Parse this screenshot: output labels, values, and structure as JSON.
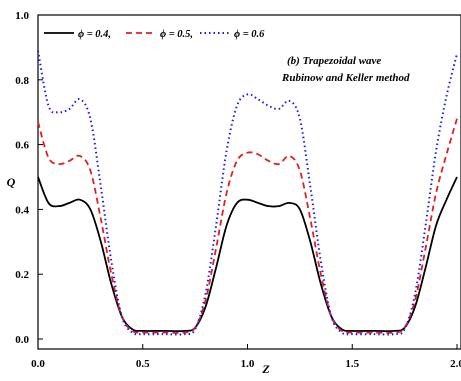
{
  "chart_data": {
    "type": "line",
    "xlabel": "Z",
    "ylabel": "Q",
    "xlim": [
      0.0,
      2.0
    ],
    "ylim": [
      0.0,
      1.0
    ],
    "x_ticks": [
      "0.0",
      "0.5",
      "1.0",
      "1.5",
      "2.0"
    ],
    "y_ticks": [
      "0.0",
      "0.2",
      "0.4",
      "0.6",
      "0.8",
      "1.0"
    ],
    "annotation": [
      "(b) Trapezoidal wave",
      "Rubinow and Keller method"
    ],
    "legend_position": "top",
    "series": [
      {
        "name": "ϕ = 0.4,",
        "color": "#000000",
        "dash": "solid",
        "points": [
          [
            0.0,
            0.5
          ],
          [
            0.05,
            0.42
          ],
          [
            0.1,
            0.41
          ],
          [
            0.15,
            0.42
          ],
          [
            0.2,
            0.43
          ],
          [
            0.25,
            0.4
          ],
          [
            0.3,
            0.3
          ],
          [
            0.35,
            0.17
          ],
          [
            0.4,
            0.07
          ],
          [
            0.45,
            0.03
          ],
          [
            0.5,
            0.025
          ],
          [
            0.6,
            0.025
          ],
          [
            0.7,
            0.025
          ],
          [
            0.75,
            0.035
          ],
          [
            0.8,
            0.1
          ],
          [
            0.85,
            0.22
          ],
          [
            0.9,
            0.35
          ],
          [
            0.95,
            0.42
          ],
          [
            1.0,
            0.43
          ],
          [
            1.05,
            0.42
          ],
          [
            1.1,
            0.41
          ],
          [
            1.15,
            0.41
          ],
          [
            1.2,
            0.42
          ],
          [
            1.25,
            0.4
          ],
          [
            1.3,
            0.3
          ],
          [
            1.35,
            0.17
          ],
          [
            1.4,
            0.07
          ],
          [
            1.45,
            0.03
          ],
          [
            1.5,
            0.025
          ],
          [
            1.6,
            0.025
          ],
          [
            1.7,
            0.025
          ],
          [
            1.75,
            0.035
          ],
          [
            1.8,
            0.1
          ],
          [
            1.85,
            0.22
          ],
          [
            1.9,
            0.35
          ],
          [
            1.95,
            0.43
          ],
          [
            2.0,
            0.5
          ]
        ]
      },
      {
        "name": "ϕ = 0.5,",
        "color": "#e02020",
        "dash": "dashed",
        "points": [
          [
            0.0,
            0.67
          ],
          [
            0.05,
            0.56
          ],
          [
            0.1,
            0.54
          ],
          [
            0.15,
            0.55
          ],
          [
            0.2,
            0.565
          ],
          [
            0.25,
            0.52
          ],
          [
            0.3,
            0.37
          ],
          [
            0.35,
            0.2
          ],
          [
            0.4,
            0.07
          ],
          [
            0.45,
            0.025
          ],
          [
            0.5,
            0.02
          ],
          [
            0.6,
            0.02
          ],
          [
            0.7,
            0.02
          ],
          [
            0.75,
            0.035
          ],
          [
            0.8,
            0.12
          ],
          [
            0.85,
            0.28
          ],
          [
            0.9,
            0.45
          ],
          [
            0.95,
            0.55
          ],
          [
            1.0,
            0.575
          ],
          [
            1.05,
            0.57
          ],
          [
            1.1,
            0.55
          ],
          [
            1.15,
            0.54
          ],
          [
            1.2,
            0.565
          ],
          [
            1.25,
            0.52
          ],
          [
            1.3,
            0.37
          ],
          [
            1.35,
            0.2
          ],
          [
            1.4,
            0.07
          ],
          [
            1.45,
            0.025
          ],
          [
            1.5,
            0.02
          ],
          [
            1.6,
            0.02
          ],
          [
            1.7,
            0.02
          ],
          [
            1.75,
            0.035
          ],
          [
            1.8,
            0.12
          ],
          [
            1.85,
            0.28
          ],
          [
            1.9,
            0.45
          ],
          [
            1.95,
            0.57
          ],
          [
            2.0,
            0.68
          ]
        ]
      },
      {
        "name": "ϕ = 0.6",
        "color": "#1a1aee",
        "dash": "dotted",
        "points": [
          [
            0.0,
            0.89
          ],
          [
            0.05,
            0.72
          ],
          [
            0.1,
            0.7
          ],
          [
            0.15,
            0.71
          ],
          [
            0.2,
            0.74
          ],
          [
            0.25,
            0.68
          ],
          [
            0.3,
            0.47
          ],
          [
            0.35,
            0.24
          ],
          [
            0.4,
            0.07
          ],
          [
            0.45,
            0.02
          ],
          [
            0.5,
            0.015
          ],
          [
            0.6,
            0.015
          ],
          [
            0.7,
            0.015
          ],
          [
            0.75,
            0.03
          ],
          [
            0.8,
            0.14
          ],
          [
            0.85,
            0.35
          ],
          [
            0.9,
            0.58
          ],
          [
            0.95,
            0.72
          ],
          [
            1.0,
            0.755
          ],
          [
            1.05,
            0.74
          ],
          [
            1.1,
            0.72
          ],
          [
            1.15,
            0.71
          ],
          [
            1.2,
            0.735
          ],
          [
            1.25,
            0.68
          ],
          [
            1.3,
            0.47
          ],
          [
            1.35,
            0.24
          ],
          [
            1.4,
            0.07
          ],
          [
            1.45,
            0.02
          ],
          [
            1.5,
            0.015
          ],
          [
            1.6,
            0.015
          ],
          [
            1.7,
            0.015
          ],
          [
            1.75,
            0.03
          ],
          [
            1.8,
            0.14
          ],
          [
            1.85,
            0.35
          ],
          [
            1.9,
            0.58
          ],
          [
            1.95,
            0.75
          ],
          [
            2.0,
            0.88
          ]
        ]
      }
    ]
  }
}
